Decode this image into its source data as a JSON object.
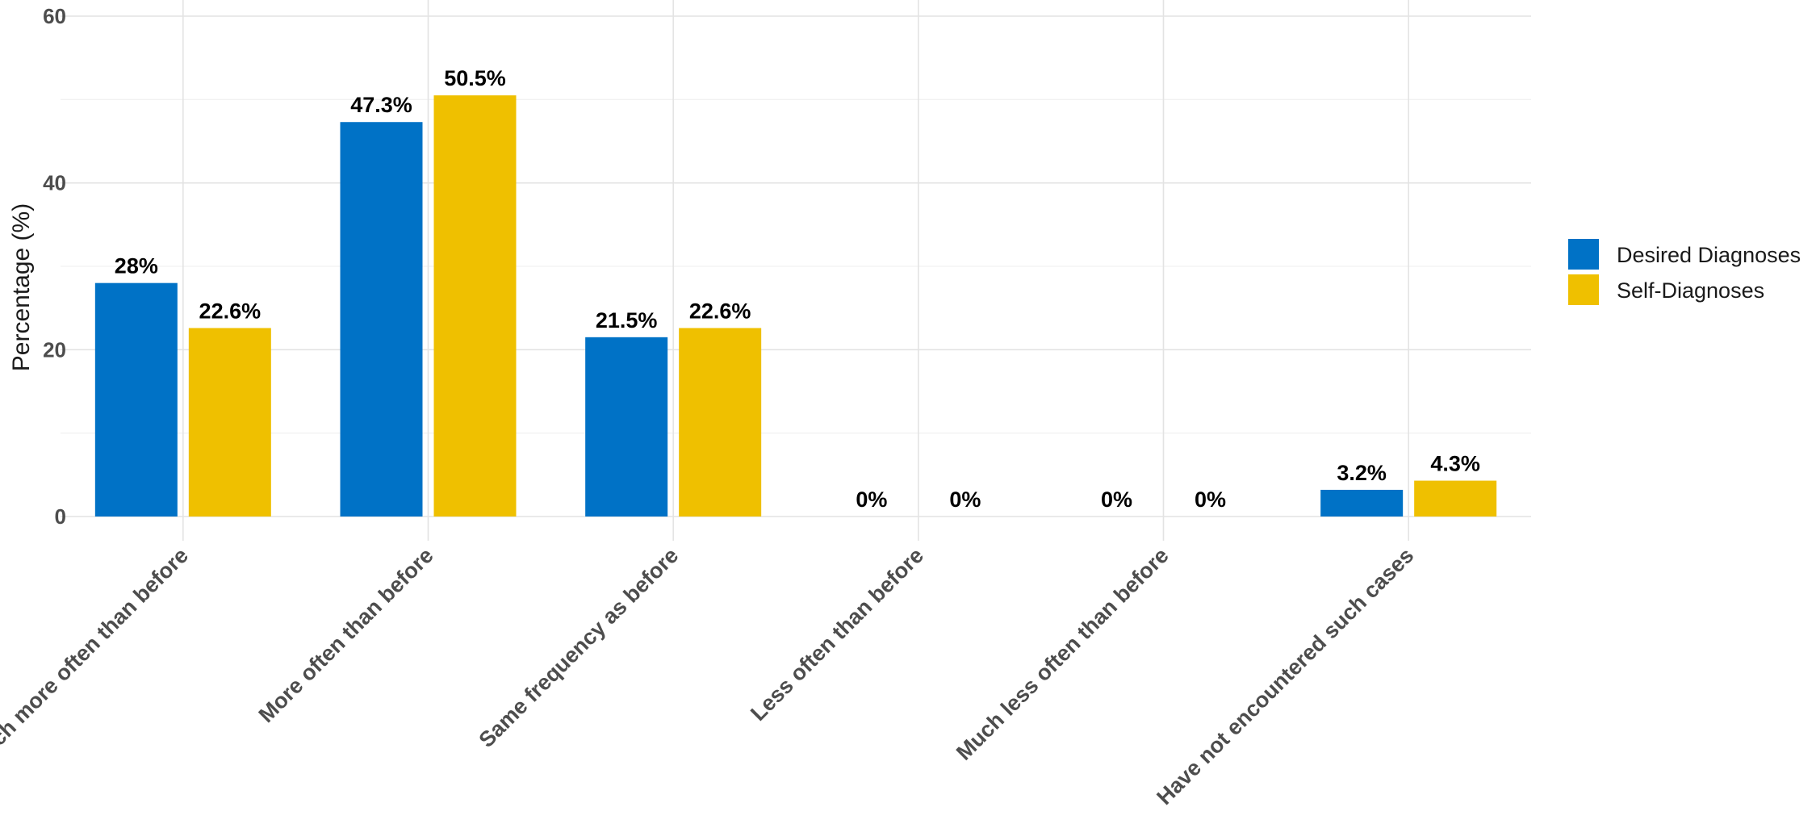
{
  "chart_data": {
    "type": "bar",
    "categories": [
      "Much more often than before",
      "More often than before",
      "Same frequency as before",
      "Less often than before",
      "Much less often than before",
      "Have not encountered such cases"
    ],
    "series": [
      {
        "name": "Desired Diagnoses",
        "color": "#0072C6",
        "values": [
          28,
          47.3,
          21.5,
          0,
          0,
          3.2
        ],
        "labels": [
          "28%",
          "47.3%",
          "21.5%",
          "0%",
          "0%",
          "3.2%"
        ]
      },
      {
        "name": "Self-Diagnoses",
        "color": "#EFC000",
        "values": [
          22.6,
          50.5,
          22.6,
          0,
          0,
          4.3
        ],
        "labels": [
          "22.6%",
          "50.5%",
          "22.6%",
          "0%",
          "0%",
          "4.3%"
        ]
      }
    ],
    "ylabel": "Percentage (%)",
    "xlabel": "",
    "ylim": [
      0,
      60
    ],
    "yticks": [
      "0",
      "20",
      "40",
      "60"
    ],
    "grid": true,
    "legend_position": "right"
  }
}
